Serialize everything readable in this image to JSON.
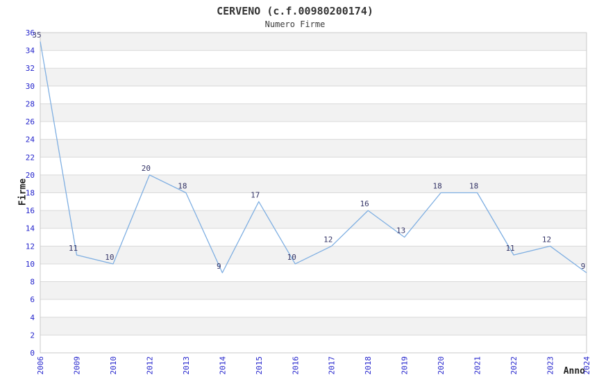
{
  "header": {
    "title": "CERVENO (c.f.00980200174)",
    "subtitle": "Numero Firme"
  },
  "chart_data": {
    "type": "line",
    "title": "CERVENO (c.f.00980200174)",
    "subtitle": "Numero Firme",
    "xlabel": "Anno",
    "ylabel": "Firme",
    "categories": [
      "2006",
      "2009",
      "2010",
      "2012",
      "2013",
      "2014",
      "2015",
      "2016",
      "2017",
      "2018",
      "2019",
      "2020",
      "2021",
      "2022",
      "2023",
      "2024"
    ],
    "values": [
      35,
      11,
      10,
      20,
      18,
      9,
      17,
      10,
      12,
      16,
      13,
      18,
      18,
      11,
      12,
      9
    ],
    "ylim": [
      0,
      36
    ],
    "ytick_step": 2,
    "grid": "horizontal",
    "bands": "alternating-gray",
    "legend_position": "none",
    "colors": {
      "line": "#7fafe2",
      "data_label": "#333366",
      "tick_label": "#2323cc",
      "band": "#f2f2f2",
      "gridline": "#d9d9d9",
      "border": "#c9c9c9",
      "title": "#333333",
      "axis_label": "#222222"
    }
  }
}
